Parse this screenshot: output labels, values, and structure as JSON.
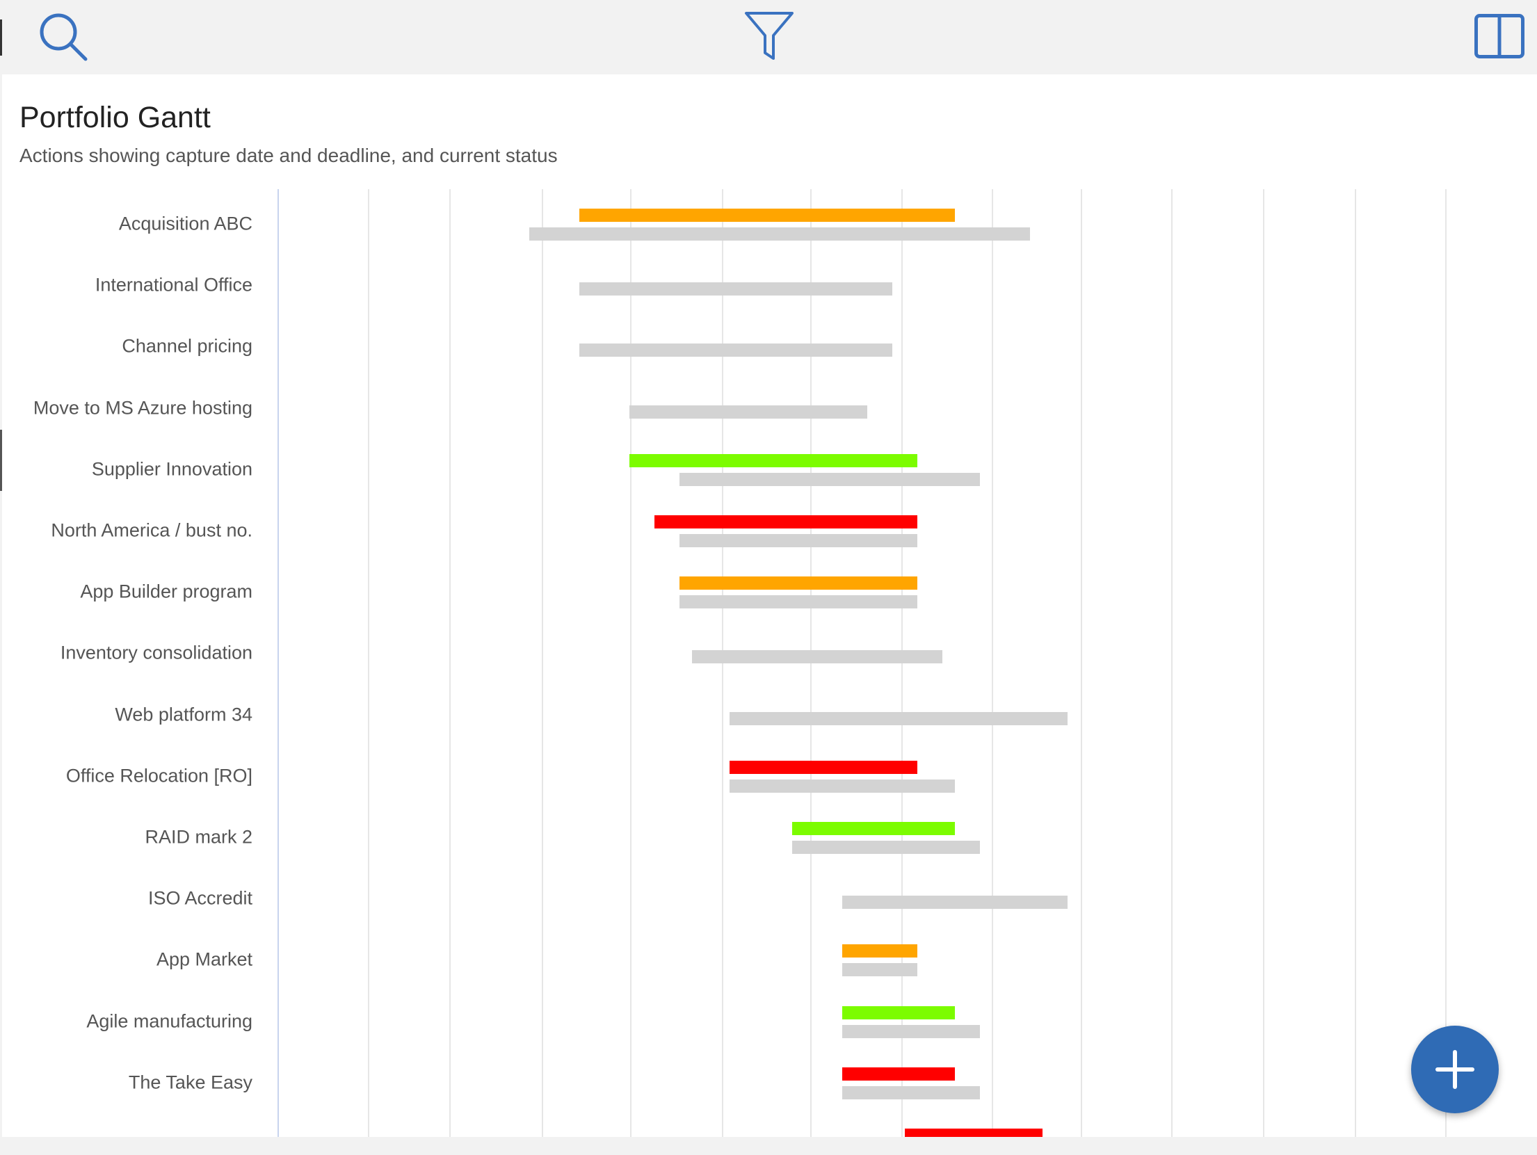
{
  "toolbar": {
    "search_icon": "search-icon",
    "filter_icon": "filter-icon",
    "layout_icon": "split-view-icon"
  },
  "header": {
    "title": "Portfolio Gantt",
    "subtitle": "Actions showing capture date and deadline, and current status"
  },
  "colors": {
    "amber": "#FFA500",
    "green": "#7CFC00",
    "red": "#FF0000",
    "baseline": "#D3D3D3",
    "accent": "#2F6BB5"
  },
  "rows": [
    {
      "label": "Acquisition ABC",
      "status": "amber",
      "actual": [
        0.24,
        0.54
      ],
      "planned": [
        0.2,
        0.6
      ]
    },
    {
      "label": "International Office",
      "status": null,
      "actual": null,
      "planned": [
        0.24,
        0.49
      ]
    },
    {
      "label": "Channel pricing",
      "status": null,
      "actual": null,
      "planned": [
        0.24,
        0.49
      ]
    },
    {
      "label": "Move to MS Azure hosting",
      "status": null,
      "actual": null,
      "planned": [
        0.28,
        0.47
      ]
    },
    {
      "label": "Supplier Innovation",
      "status": "green",
      "actual": [
        0.28,
        0.51
      ],
      "planned": [
        0.32,
        0.56
      ]
    },
    {
      "label": "North America / bust no.",
      "status": "red",
      "actual": [
        0.3,
        0.51
      ],
      "planned": [
        0.32,
        0.51
      ]
    },
    {
      "label": "App Builder program",
      "status": "amber",
      "actual": [
        0.32,
        0.51
      ],
      "planned": [
        0.32,
        0.51
      ]
    },
    {
      "label": "Inventory consolidation",
      "status": null,
      "actual": null,
      "planned": [
        0.33,
        0.53
      ]
    },
    {
      "label": "Web platform 34",
      "status": null,
      "actual": null,
      "planned": [
        0.36,
        0.63
      ]
    },
    {
      "label": "Office Relocation [RO]",
      "status": "red",
      "actual": [
        0.36,
        0.51
      ],
      "planned": [
        0.36,
        0.54
      ]
    },
    {
      "label": "RAID mark 2",
      "status": "green",
      "actual": [
        0.41,
        0.54
      ],
      "planned": [
        0.41,
        0.56
      ]
    },
    {
      "label": "ISO Accredit",
      "status": null,
      "actual": null,
      "planned": [
        0.45,
        0.63
      ]
    },
    {
      "label": "App Market",
      "status": "amber",
      "actual": [
        0.45,
        0.51
      ],
      "planned": [
        0.45,
        0.51
      ]
    },
    {
      "label": "Agile manufacturing",
      "status": "green",
      "actual": [
        0.45,
        0.54
      ],
      "planned": [
        0.45,
        0.56
      ]
    },
    {
      "label": "The Take Easy",
      "status": "red",
      "actual": [
        0.45,
        0.54
      ],
      "planned": [
        0.45,
        0.56
      ]
    },
    {
      "label": "",
      "status": "red",
      "actual": [
        0.5,
        0.61
      ],
      "planned": null
    }
  ],
  "fab": {
    "icon": "plus-icon"
  }
}
